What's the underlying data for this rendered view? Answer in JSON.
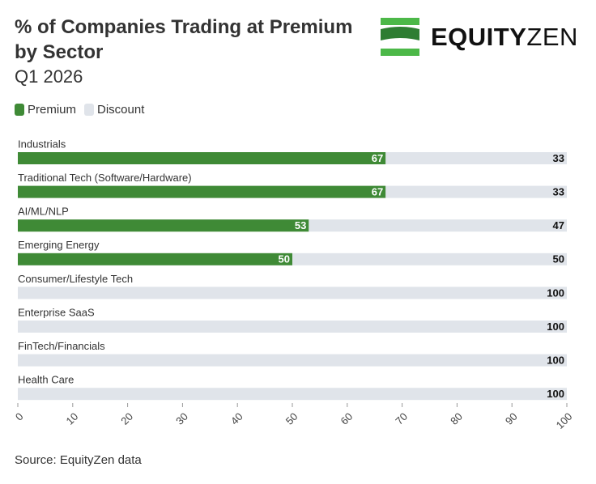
{
  "chart_data": {
    "type": "stacked-bar-horizontal",
    "title": "% of Companies Trading at Premium by Sector",
    "subtitle": "Q1 2026",
    "logo": {
      "bold": "EQUITY",
      "light": "ZEN"
    },
    "source": "Source: EquityZen data",
    "categories": [
      "Industrials",
      "Traditional Tech (Software/Hardware)",
      "AI/ML/NLP",
      "Emerging Energy",
      "Consumer/Lifestyle Tech",
      "Enterprise SaaS",
      "FinTech/Financials",
      "Health Care"
    ],
    "series": [
      {
        "name": "Premium",
        "color": "#3f8a36",
        "values": [
          67,
          67,
          53,
          50,
          0,
          0,
          0,
          0
        ]
      },
      {
        "name": "Discount",
        "color": "#e0e4ea",
        "values": [
          33,
          33,
          47,
          50,
          100,
          100,
          100,
          100
        ]
      }
    ],
    "xlim": [
      0,
      100
    ],
    "xticks": [
      0,
      10,
      20,
      30,
      40,
      50,
      60,
      70,
      80,
      90,
      100
    ]
  }
}
